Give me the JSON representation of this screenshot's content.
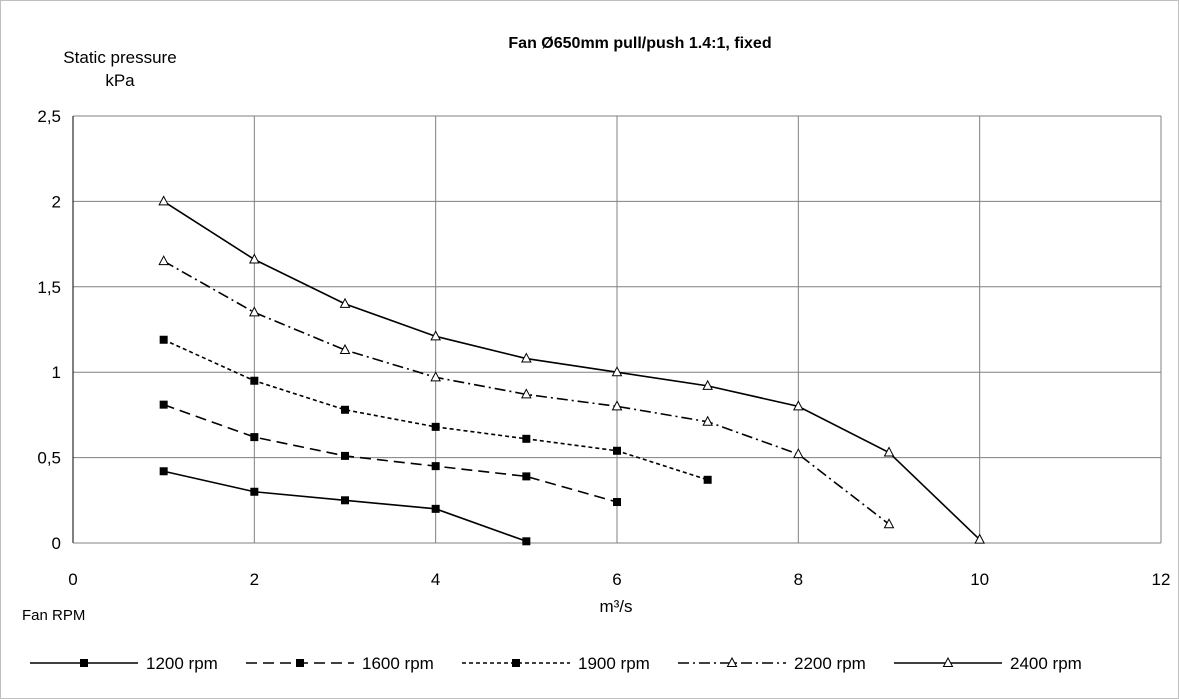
{
  "chart_data": {
    "type": "line",
    "title": "Fan Ø650mm pull/push 1.4:1, fixed",
    "ylabel_line1": "Static pressure",
    "ylabel_line2": "kPa",
    "xlabel": "m³/s",
    "legend_title": "Fan RPM",
    "xlim": [
      0,
      12
    ],
    "ylim": [
      0,
      2.5
    ],
    "xticks": [
      "0",
      "2",
      "4",
      "6",
      "8",
      "10",
      "12"
    ],
    "yticks": [
      "0",
      "0,5",
      "1",
      "1,5",
      "2",
      "2,5"
    ],
    "grid": true,
    "legend_position": "bottom",
    "series": [
      {
        "name": "1200 rpm",
        "style": "solid",
        "marker": "square",
        "x": [
          1,
          2,
          3,
          4,
          5
        ],
        "y": [
          0.42,
          0.3,
          0.25,
          0.2,
          0.01
        ]
      },
      {
        "name": "1600 rpm",
        "style": "dash",
        "marker": "square",
        "x": [
          1,
          2,
          3,
          4,
          5,
          6
        ],
        "y": [
          0.81,
          0.62,
          0.51,
          0.45,
          0.39,
          0.24
        ]
      },
      {
        "name": "1900 rpm",
        "style": "dot",
        "marker": "square",
        "x": [
          1,
          2,
          3,
          4,
          5,
          6,
          7
        ],
        "y": [
          1.19,
          0.95,
          0.78,
          0.68,
          0.61,
          0.54,
          0.37
        ]
      },
      {
        "name": "2200 rpm",
        "style": "dashdot",
        "marker": "triangle",
        "x": [
          1,
          2,
          3,
          4,
          5,
          6,
          7,
          8,
          9
        ],
        "y": [
          1.65,
          1.35,
          1.13,
          0.97,
          0.87,
          0.8,
          0.71,
          0.52,
          0.11
        ]
      },
      {
        "name": "2400 rpm",
        "style": "solid",
        "marker": "triangle",
        "x": [
          1,
          2,
          3,
          4,
          5,
          6,
          7,
          8,
          9,
          10
        ],
        "y": [
          2.0,
          1.66,
          1.4,
          1.21,
          1.08,
          1.0,
          0.92,
          0.8,
          0.53,
          0.02
        ]
      }
    ],
    "colors": {
      "line": "#000000",
      "grid": "#808080",
      "frame": "#bfbfbf"
    }
  }
}
